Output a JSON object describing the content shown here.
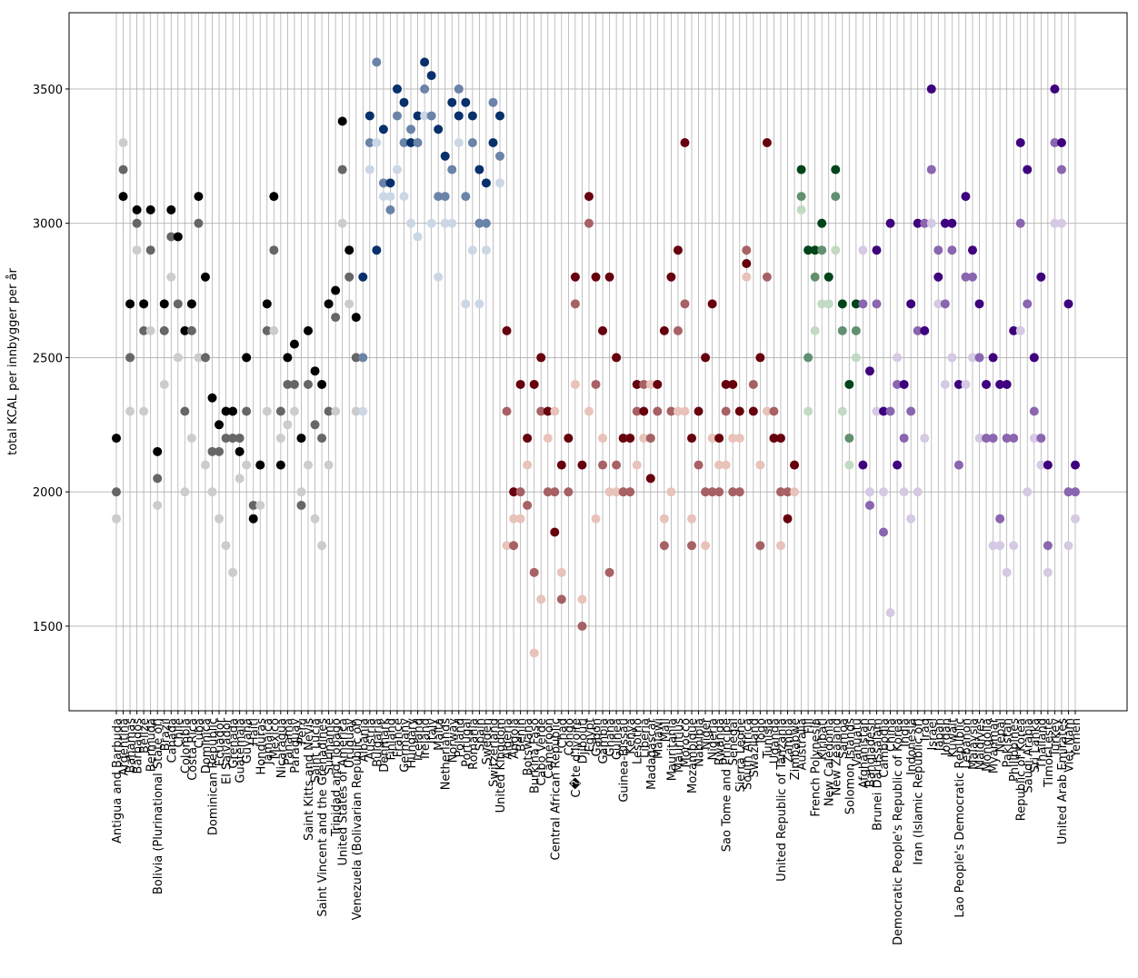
{
  "chart_data": {
    "type": "scatter",
    "ylabel": "total KCAL per innbygger per år",
    "ylim": [
      1185,
      3784
    ],
    "yticks": [
      1500,
      2000,
      2500,
      3000,
      3500
    ],
    "grid": true,
    "series": [
      {
        "color_range": [
          "#f0f0f0",
          "#000000"
        ],
        "categories": [
          "Antigua and Barbuda",
          "Argentina",
          "Bahamas",
          "Barbados",
          "Belize",
          "Bermuda",
          "Bolivia (Plurinational State of)",
          "Brazil",
          "Canada",
          "Chile",
          "Colombia",
          "Costa Rica",
          "Cuba",
          "Dominica",
          "Dominican Republic",
          "Ecuador",
          "El Salvador",
          "Grenada",
          "Guatemala",
          "Guyana",
          "Haiti",
          "Honduras",
          "Jamaica",
          "Mexico",
          "Nicaragua",
          "Panama",
          "Paraguay",
          "Peru",
          "Saint Kitts and Nevis",
          "Saint Lucia",
          "Saint Vincent and the Grenadines",
          "Suriname",
          "Trinidad and Tobago",
          "United States of America",
          "Uruguay",
          "Venezuela (Bolivarian Republic of)"
        ],
        "values": [
          [
            1900,
            2000,
            2200
          ],
          [
            3300,
            3200,
            3100
          ],
          [
            2300,
            2500,
            2700
          ],
          [
            2900,
            3000,
            3050
          ],
          [
            2300,
            2600,
            2700
          ],
          [
            2600,
            2900,
            3050
          ],
          [
            1950,
            2050,
            2150
          ],
          [
            2400,
            2600,
            2700
          ],
          [
            2800,
            2950,
            3050
          ],
          [
            2500,
            2700,
            2950
          ],
          [
            2000,
            2300,
            2600
          ],
          [
            2200,
            2600,
            2700
          ],
          [
            2500,
            3000,
            3100
          ],
          [
            2100,
            2500,
            2800
          ],
          [
            2000,
            2150,
            2350
          ],
          [
            1900,
            2150,
            2250
          ],
          [
            1800,
            2200,
            2300
          ],
          [
            1700,
            2200,
            2300
          ],
          [
            2050,
            2200,
            2150
          ],
          [
            2100,
            2300,
            2500
          ],
          [
            1900,
            1950,
            1900
          ],
          [
            1950,
            2100,
            2100
          ],
          [
            2300,
            2600,
            2700
          ],
          [
            2600,
            2900,
            3100
          ],
          [
            2200,
            2300,
            2100
          ],
          [
            2250,
            2400,
            2500
          ],
          [
            2300,
            2400,
            2550
          ],
          [
            2000,
            1950,
            2200
          ],
          [
            2100,
            2400,
            2600
          ],
          [
            1900,
            2250,
            2450
          ],
          [
            1800,
            2200,
            2400
          ],
          [
            2100,
            2300,
            2700
          ],
          [
            2300,
            2650,
            2750
          ],
          [
            3000,
            3200,
            3380
          ],
          [
            2700,
            2800,
            2900
          ],
          [
            2300,
            2500,
            2650
          ]
        ]
      },
      {
        "color_range": [
          "#eef4fb",
          "#08306b"
        ],
        "categories": [
          "Albania",
          "Austria",
          "Bulgaria",
          "Denmark",
          "Finland",
          "France",
          "Germany",
          "Hungary",
          "Iceland",
          "Ireland",
          "Italy",
          "Malta",
          "Netherlands",
          "Norway",
          "Poland",
          "Portugal",
          "Romania",
          "Spain",
          "Sweden",
          "Switzerland",
          "United Kingdom"
        ],
        "values": [
          [
            2300,
            2500,
            2800
          ],
          [
            3200,
            3300,
            3400
          ],
          [
            3300,
            3600,
            2900
          ],
          [
            3100,
            3150,
            3350
          ],
          [
            3100,
            3050,
            3150
          ],
          [
            3200,
            3400,
            3500
          ],
          [
            3100,
            3300,
            3450
          ],
          [
            3000,
            3350,
            3300
          ],
          [
            2950,
            3300,
            3400
          ],
          [
            3400,
            3500,
            3600
          ],
          [
            3000,
            3400,
            3550
          ],
          [
            2800,
            3100,
            3350
          ],
          [
            3000,
            3100,
            3250
          ],
          [
            3000,
            3200,
            3450
          ],
          [
            3300,
            3500,
            3400
          ],
          [
            2700,
            3100,
            3450
          ],
          [
            2900,
            3300,
            3400
          ],
          [
            2700,
            3000,
            3200
          ],
          [
            2900,
            3000,
            3150
          ],
          [
            3300,
            3450,
            3300
          ],
          [
            3150,
            3250,
            3400
          ]
        ]
      },
      {
        "color_range": [
          "#fee5d9",
          "#67000d"
        ],
        "categories": [
          "Algeria",
          "Angola",
          "Benin",
          "Botswana",
          "Burkina Faso",
          "Cabo Verde",
          "Cameroon",
          "Central African Republic",
          "Chad",
          "Congo",
          "C�te d'Ivoire",
          "Djibouti",
          "Egypt",
          "Gabon",
          "Gambia",
          "Ghana",
          "Guinea",
          "Guinea-Bissau",
          "Kenya",
          "Lesotho",
          "Liberia",
          "Madagascar",
          "Malawi",
          "Mali",
          "Mauritania",
          "Mauritius",
          "Morocco",
          "Mozambique",
          "Namibia",
          "Niger",
          "Nigeria",
          "Rwanda",
          "Sao Tome and Principe",
          "Senegal",
          "Sierra Leone",
          "South Africa",
          "Swaziland",
          "Togo",
          "Tunisia",
          "Uganda",
          "United Republic of Tanzania",
          "Zambia",
          "Zimbabwe"
        ],
        "values": [
          [
            1800,
            2300,
            2600
          ],
          [
            1900,
            1800,
            2000
          ],
          [
            1900,
            2000,
            2400
          ],
          [
            2100,
            1950,
            2200
          ],
          [
            1400,
            1700,
            2400
          ],
          [
            1600,
            2300,
            2500
          ],
          [
            2200,
            2000,
            2300
          ],
          [
            2300,
            2000,
            1850
          ],
          [
            1700,
            1600,
            2100
          ],
          [
            2200,
            2000,
            2200
          ],
          [
            2400,
            2700,
            2800
          ],
          [
            1600,
            1500,
            2100
          ],
          [
            2300,
            3000,
            3100
          ],
          [
            1900,
            2400,
            2800
          ],
          [
            2200,
            2100,
            2600
          ],
          [
            2000,
            1700,
            2800
          ],
          [
            2000,
            2100,
            2500
          ],
          [
            2000,
            2000,
            2200
          ],
          [
            2200,
            2000,
            2200
          ],
          [
            2100,
            2300,
            2400
          ],
          [
            2200,
            2400,
            2300
          ],
          [
            2400,
            2200,
            2050
          ],
          [
            2300,
            2300,
            2400
          ],
          [
            1900,
            1800,
            2600
          ],
          [
            2000,
            2300,
            2800
          ],
          [
            2300,
            2600,
            2900
          ],
          [
            2300,
            2700,
            3300
          ],
          [
            1900,
            1800,
            2200
          ],
          [
            2100,
            2100,
            2300
          ],
          [
            1800,
            2000,
            2500
          ],
          [
            2200,
            2000,
            2700
          ],
          [
            2100,
            2000,
            2200
          ],
          [
            2100,
            2300,
            2400
          ],
          [
            2200,
            2000,
            2400
          ],
          [
            2200,
            2000,
            2300
          ],
          [
            2800,
            2900,
            2850
          ],
          [
            2300,
            2400,
            2300
          ],
          [
            2100,
            1800,
            2500
          ],
          [
            2300,
            2800,
            3300
          ],
          [
            2200,
            2300,
            2200
          ],
          [
            1800,
            2000,
            2200
          ],
          [
            2000,
            2000,
            1900
          ],
          [
            2000,
            2100,
            2100
          ]
        ]
      },
      {
        "color_range": [
          "#e5f5e0",
          "#00441b"
        ],
        "categories": [
          "Australia",
          "Fiji",
          "French Polynesia",
          "Kiribati",
          "New Caledonia",
          "New Zealand",
          "Samoa",
          "Solomon Islands",
          "Vanuatu"
        ],
        "values": [
          [
            3050,
            3100,
            3200
          ],
          [
            2300,
            2500,
            2900
          ],
          [
            2600,
            2800,
            2900
          ],
          [
            2700,
            2900,
            3000
          ],
          [
            2700,
            2800,
            2800
          ],
          [
            2900,
            3100,
            3200
          ],
          [
            2300,
            2600,
            2700
          ],
          [
            2100,
            2200,
            2400
          ],
          [
            2500,
            2600,
            2700
          ]
        ]
      },
      {
        "color_range": [
          "#efedf5",
          "#3f007d"
        ],
        "categories": [
          "Afghanistan",
          "Bangladesh",
          "Brunei Darussalam",
          "Cambodia",
          "China",
          "Democratic People's Republic of Korea",
          "India",
          "Indonesia",
          "Iran (Islamic Republic of)",
          "Iraq",
          "Israel",
          "Japan",
          "Jordan",
          "Kuwait",
          "Lao People's Democratic Republic",
          "Lebanon",
          "Malaysia",
          "Maldives",
          "Mongolia",
          "Myanmar",
          "Nepal",
          "Pakistan",
          "Philippines",
          "Republic of Korea",
          "Saudi Arabia",
          "Sri Lanka",
          "Thailand",
          "Timor-Leste",
          "Turkey",
          "United Arab Emirates",
          "Viet Nam",
          "Yemen"
        ],
        "values": [
          [
            2900,
            2700,
            2100
          ],
          [
            2000,
            1950,
            2450
          ],
          [
            2300,
            2700,
            2900
          ],
          [
            2000,
            1850,
            2300
          ],
          [
            1550,
            2300,
            3000
          ],
          [
            2500,
            2400,
            2100
          ],
          [
            2000,
            2200,
            2400
          ],
          [
            1900,
            2300,
            2700
          ],
          [
            2000,
            2600,
            3000
          ],
          [
            2200,
            3000,
            2600
          ],
          [
            3000,
            3200,
            3500
          ],
          [
            2700,
            2900,
            2800
          ],
          [
            2400,
            2700,
            3000
          ],
          [
            2500,
            2900,
            3000
          ],
          [
            2100,
            2100,
            2400
          ],
          [
            2400,
            2800,
            3100
          ],
          [
            2500,
            2800,
            2900
          ],
          [
            2200,
            2500,
            2700
          ],
          [
            2400,
            2200,
            2400
          ],
          [
            1800,
            2200,
            2500
          ],
          [
            1800,
            1900,
            2400
          ],
          [
            1700,
            2200,
            2400
          ],
          [
            1800,
            2200,
            2600
          ],
          [
            2600,
            3000,
            3300
          ],
          [
            2000,
            2700,
            3200
          ],
          [
            2200,
            2300,
            2500
          ],
          [
            2100,
            2200,
            2800
          ],
          [
            1700,
            1800,
            2100
          ],
          [
            3000,
            3300,
            3500
          ],
          [
            3000,
            3200,
            3300
          ],
          [
            1800,
            2000,
            2700
          ],
          [
            1900,
            2000,
            2100
          ]
        ]
      }
    ]
  }
}
